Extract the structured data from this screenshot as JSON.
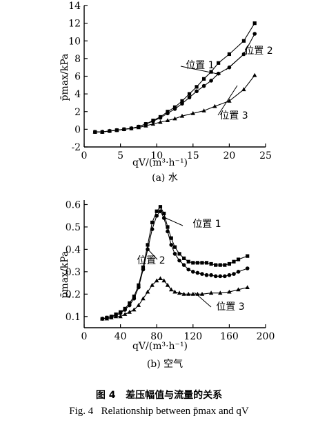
{
  "figure": {
    "caption_zh_label": "图 4",
    "caption_zh_text": "差压幅值与流量的关系",
    "caption_en_label": "Fig. 4",
    "caption_en_text": "Relationship between p̄max and qV"
  },
  "chart_data": [
    {
      "type": "line",
      "subtitle": "(a) 水",
      "ylabel": "p̄max/kPa",
      "xlabel": "qV/(m³·h⁻¹)",
      "xlim": [
        0,
        25
      ],
      "ylim": [
        -2,
        14
      ],
      "xticks": [
        0,
        5,
        10,
        15,
        20,
        25
      ],
      "yticks": [
        -2,
        0,
        2,
        4,
        6,
        8,
        10,
        12,
        14
      ],
      "grid": false,
      "series": [
        {
          "name": "位置 1",
          "marker": "square",
          "x": [
            1.5,
            2.5,
            3.5,
            4.5,
            5.5,
            6.5,
            7.5,
            8.5,
            9.5,
            10.5,
            11.5,
            12.5,
            13.5,
            14.5,
            15.5,
            16.5,
            17.5,
            18.5,
            20,
            22,
            23.5
          ],
          "y": [
            -0.3,
            -0.3,
            -0.2,
            -0.1,
            0.0,
            0.1,
            0.3,
            0.6,
            1.0,
            1.4,
            2.0,
            2.5,
            3.2,
            4.0,
            4.8,
            5.7,
            6.5,
            7.5,
            8.5,
            10.0,
            12.0
          ]
        },
        {
          "name": "位置 2",
          "marker": "circle",
          "x": [
            1.5,
            2.5,
            3.5,
            4.5,
            5.5,
            6.5,
            7.5,
            8.5,
            9.5,
            10.5,
            11.5,
            12.5,
            13.5,
            14.5,
            15.5,
            16.5,
            17.5,
            18.5,
            20,
            22,
            23.5
          ],
          "y": [
            -0.3,
            -0.3,
            -0.2,
            -0.1,
            0.0,
            0.1,
            0.3,
            0.6,
            0.9,
            1.3,
            1.8,
            2.3,
            2.9,
            3.6,
            4.3,
            4.9,
            5.5,
            6.3,
            7.0,
            8.5,
            10.8
          ]
        },
        {
          "name": "位置 3",
          "marker": "triangle",
          "x": [
            1.5,
            2.5,
            3.5,
            4.5,
            5.5,
            6.5,
            7.5,
            8.5,
            9.5,
            10.5,
            11.5,
            12.5,
            13.5,
            15,
            16.5,
            18,
            20,
            22,
            23.5
          ],
          "y": [
            -0.3,
            -0.3,
            -0.2,
            -0.1,
            0.0,
            0.1,
            0.2,
            0.4,
            0.6,
            0.8,
            1.0,
            1.2,
            1.5,
            1.8,
            2.1,
            2.6,
            3.2,
            4.5,
            6.1
          ]
        }
      ]
    },
    {
      "type": "line",
      "subtitle": "(b) 空气",
      "ylabel": "p̄max/kPa",
      "xlabel": "qV/(m³·h⁻¹)",
      "xlim": [
        0,
        200
      ],
      "ylim": [
        0.05,
        0.62
      ],
      "xticks": [
        0,
        40,
        80,
        120,
        160,
        200
      ],
      "yticks": [
        0.1,
        0.2,
        0.3,
        0.4,
        0.5,
        0.6
      ],
      "grid": false,
      "series": [
        {
          "name": "位置 1",
          "marker": "square",
          "x": [
            20,
            25,
            30,
            35,
            40,
            45,
            50,
            55,
            60,
            65,
            70,
            75,
            80,
            84,
            88,
            92,
            96,
            100,
            105,
            110,
            115,
            120,
            125,
            130,
            135,
            140,
            145,
            150,
            155,
            160,
            165,
            170,
            180
          ],
          "y": [
            0.09,
            0.095,
            0.1,
            0.11,
            0.12,
            0.135,
            0.16,
            0.19,
            0.24,
            0.32,
            0.42,
            0.52,
            0.57,
            0.59,
            0.56,
            0.5,
            0.45,
            0.41,
            0.38,
            0.36,
            0.345,
            0.34,
            0.34,
            0.34,
            0.34,
            0.335,
            0.33,
            0.33,
            0.33,
            0.335,
            0.345,
            0.355,
            0.37
          ]
        },
        {
          "name": "位置 2",
          "marker": "circle",
          "x": [
            20,
            25,
            30,
            35,
            40,
            45,
            50,
            55,
            60,
            65,
            70,
            75,
            80,
            84,
            88,
            92,
            96,
            100,
            105,
            110,
            115,
            120,
            125,
            130,
            135,
            140,
            145,
            150,
            155,
            160,
            165,
            170,
            180
          ],
          "y": [
            0.09,
            0.095,
            0.1,
            0.105,
            0.115,
            0.13,
            0.15,
            0.18,
            0.23,
            0.31,
            0.4,
            0.49,
            0.55,
            0.57,
            0.54,
            0.48,
            0.42,
            0.38,
            0.35,
            0.33,
            0.31,
            0.3,
            0.295,
            0.29,
            0.285,
            0.285,
            0.28,
            0.28,
            0.28,
            0.285,
            0.29,
            0.3,
            0.315
          ]
        },
        {
          "name": "位置 3",
          "marker": "triangle",
          "x": [
            20,
            25,
            30,
            35,
            40,
            45,
            50,
            55,
            60,
            65,
            70,
            75,
            80,
            84,
            88,
            92,
            96,
            100,
            105,
            110,
            115,
            120,
            125,
            130,
            140,
            150,
            160,
            170,
            180
          ],
          "y": [
            0.09,
            0.09,
            0.095,
            0.1,
            0.1,
            0.11,
            0.12,
            0.13,
            0.15,
            0.18,
            0.21,
            0.24,
            0.26,
            0.27,
            0.26,
            0.24,
            0.22,
            0.21,
            0.205,
            0.2,
            0.2,
            0.2,
            0.2,
            0.2,
            0.205,
            0.205,
            0.21,
            0.22,
            0.23
          ]
        }
      ]
    }
  ]
}
